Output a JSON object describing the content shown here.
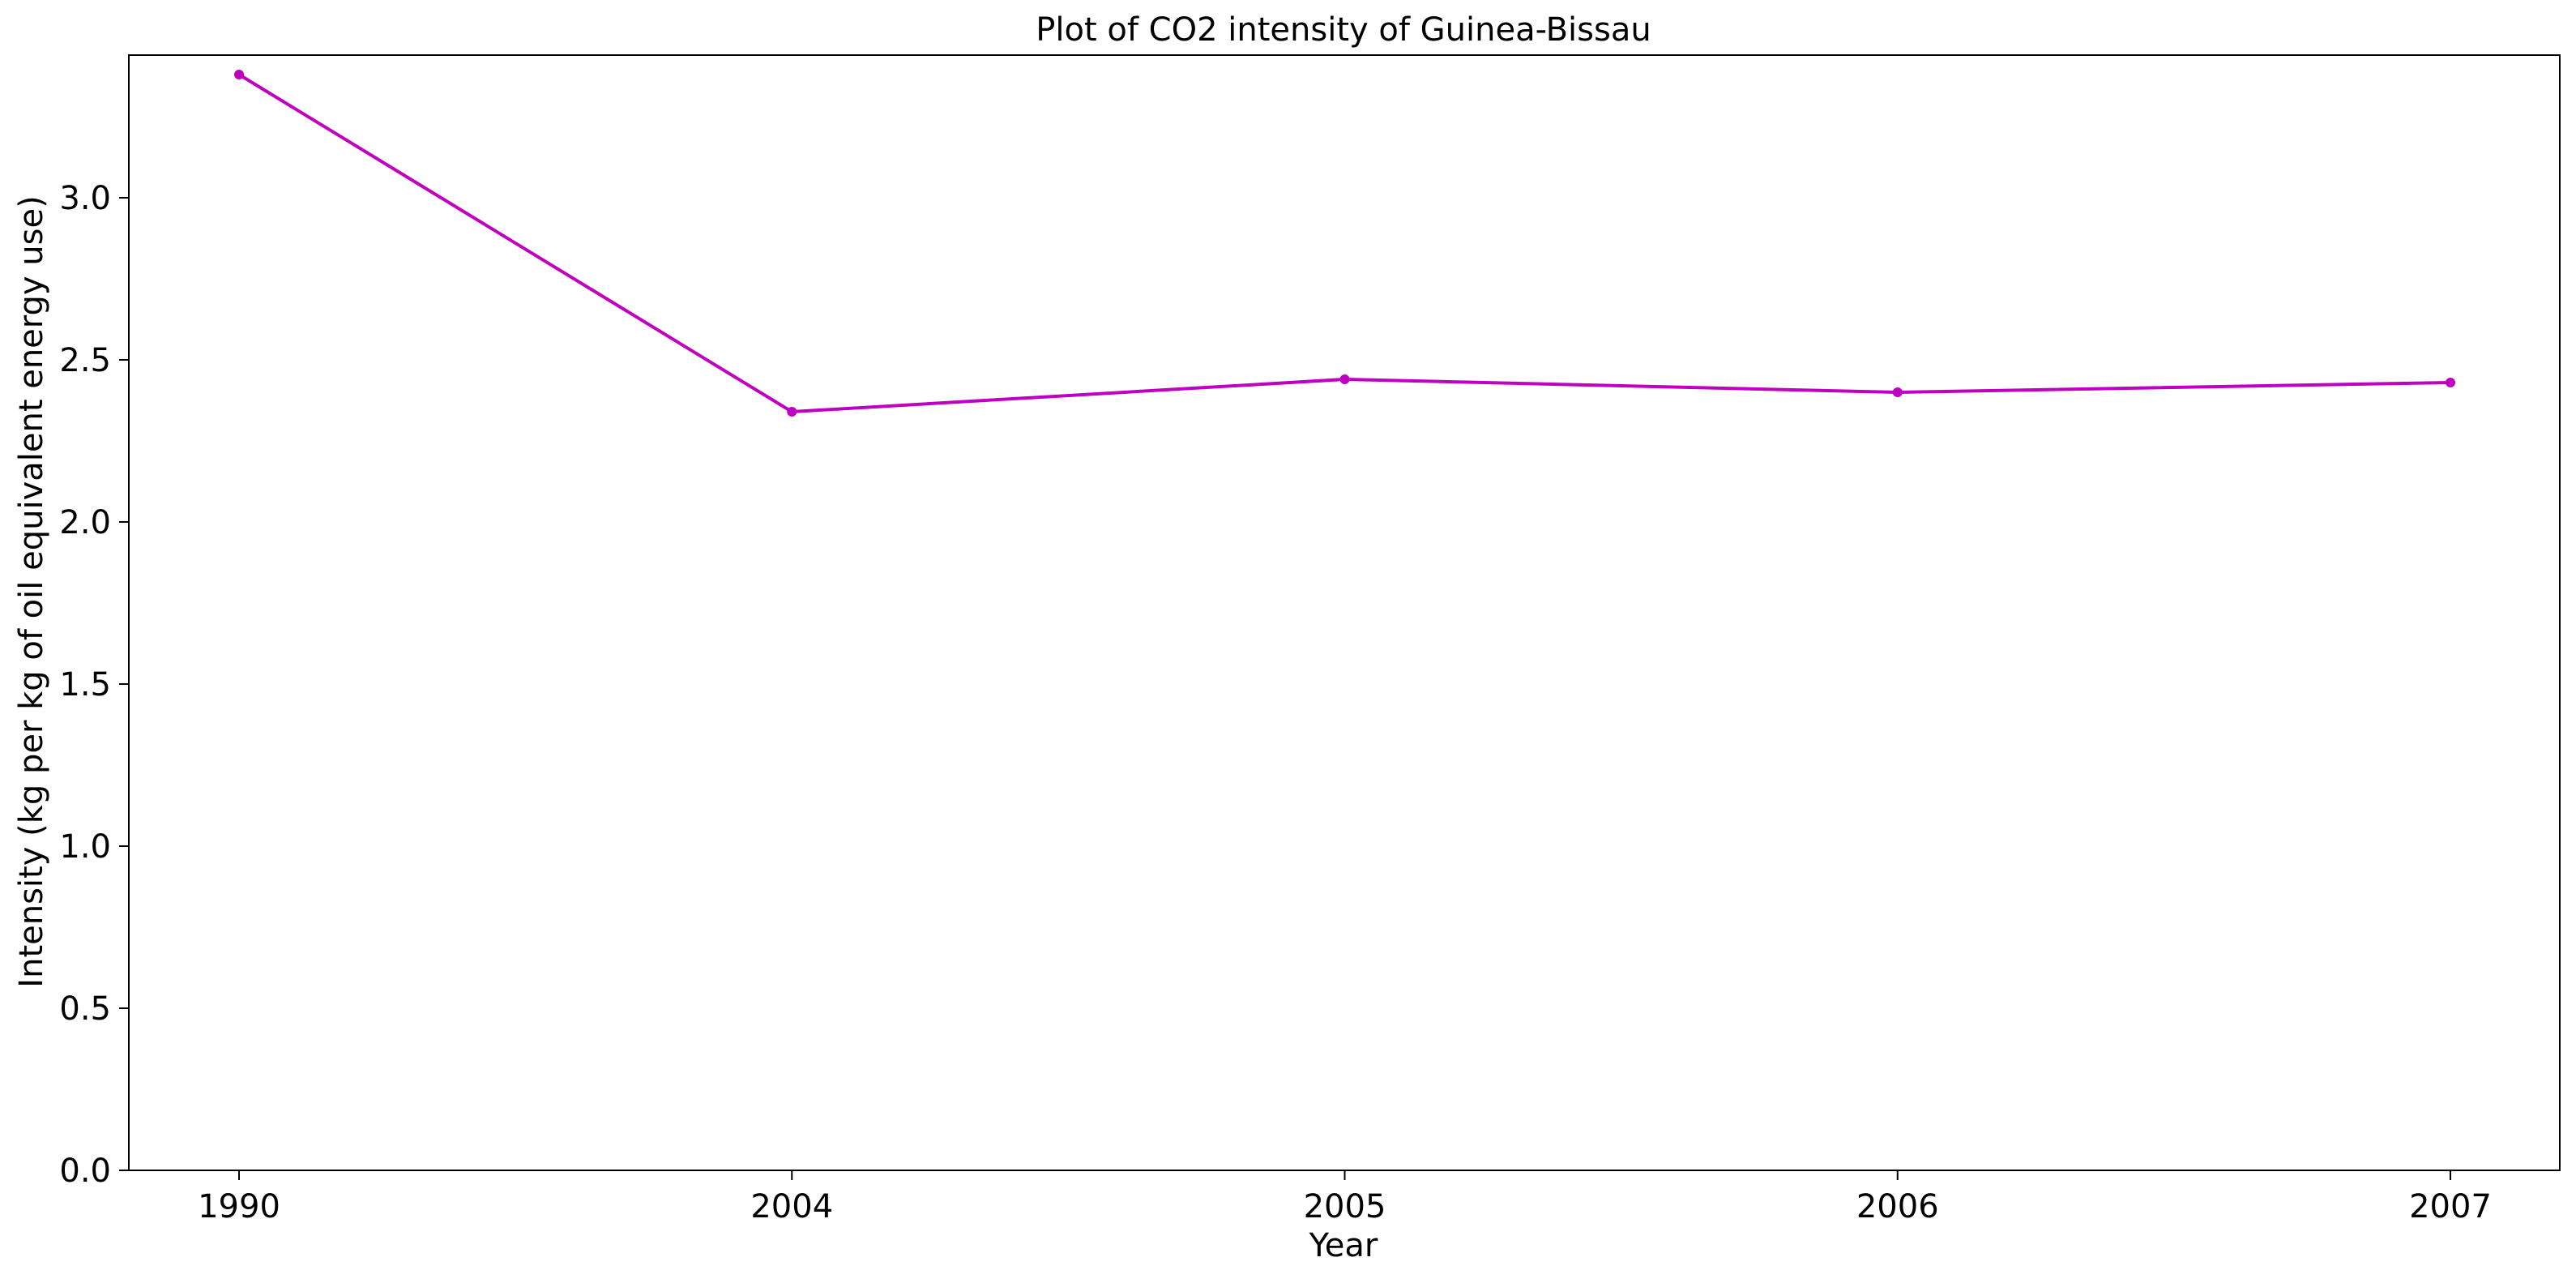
{
  "chart_data": {
    "type": "line",
    "title": "Plot of CO2 intensity of Guinea-Bissau",
    "xlabel": "Year",
    "ylabel": "Intensity (kg per kg of oil equivalent energy use)",
    "categories": [
      "1990",
      "2004",
      "2005",
      "2006",
      "2007"
    ],
    "series": [
      {
        "values": [
          3.38,
          2.34,
          2.44,
          2.4,
          2.43
        ],
        "color": "#c000c0",
        "marker": "circle"
      }
    ],
    "ylim": [
      0,
      3.44
    ],
    "yticks": [
      0.0,
      0.5,
      1.0,
      1.5,
      2.0,
      2.5,
      3.0
    ],
    "ytick_labels": [
      "0.0",
      "0.5",
      "1.0",
      "1.5",
      "2.0",
      "2.5",
      "3.0"
    ],
    "grid": false,
    "legend": "none"
  }
}
